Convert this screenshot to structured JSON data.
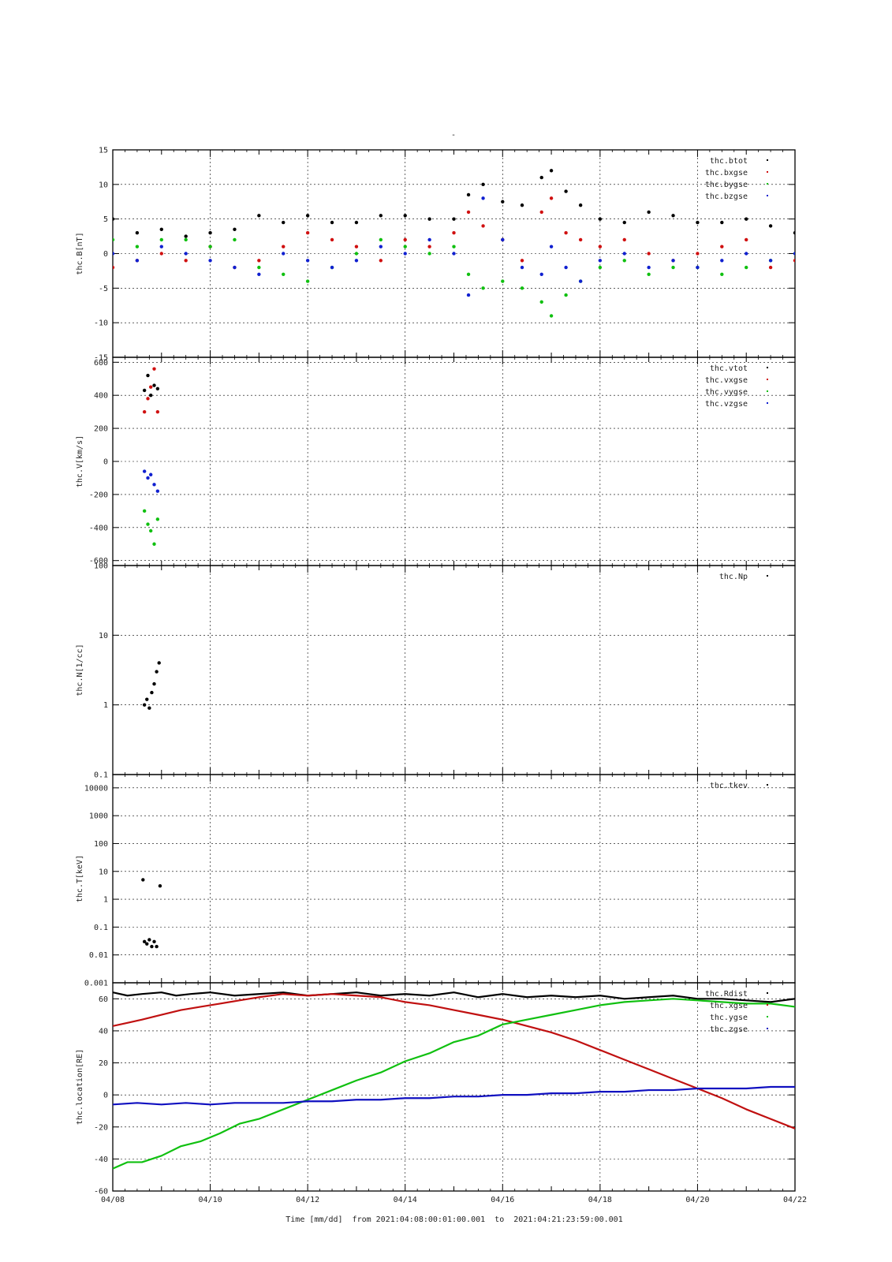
{
  "figure": {
    "title": "-",
    "xlabel": "Time [mm/dd]  from 2021:04:08:00:01:00.001  to  2021:04:21:23:59:00.001",
    "x_ticks": [
      "04/08",
      "04/10",
      "04/12",
      "04/14",
      "04/16",
      "04/18",
      "04/20",
      "04/22"
    ],
    "x_range_days": [
      8,
      22
    ]
  },
  "chart_data": [
    {
      "type": "scatter",
      "ylabel": "thc.B[nT]",
      "ylim": [
        -15,
        15
      ],
      "y_ticks": [
        "15",
        "10",
        "5",
        "0",
        "-5",
        "-10",
        "-15"
      ],
      "legend": "top-right",
      "series": [
        {
          "name": "thc.btot",
          "color": "#000000",
          "x": [
            8.0,
            8.5,
            9.0,
            9.5,
            10.0,
            10.5,
            11.0,
            11.5,
            12.0,
            12.5,
            13.0,
            13.5,
            14.0,
            14.5,
            15.0,
            15.3,
            15.6,
            16.0,
            16.4,
            16.8,
            17.0,
            17.3,
            17.6,
            18.0,
            18.5,
            19.0,
            19.5,
            20.0,
            20.5,
            21.0,
            21.5,
            22.0
          ],
          "values": [
            5,
            3,
            3.5,
            2.5,
            3,
            3.5,
            5.5,
            4.5,
            5.5,
            4.5,
            4.5,
            5.5,
            5.5,
            5,
            5,
            8.5,
            10,
            7.5,
            7,
            11,
            12,
            9,
            7,
            5,
            4.5,
            6,
            5.5,
            4.5,
            4.5,
            5,
            4,
            3
          ]
        },
        {
          "name": "thc.bxgse",
          "color": "#d01010",
          "x": [
            8.0,
            8.5,
            9.0,
            9.5,
            10.0,
            10.5,
            11.0,
            11.5,
            12.0,
            12.5,
            13.0,
            13.5,
            14.0,
            14.5,
            15.0,
            15.3,
            15.6,
            16.0,
            16.4,
            16.8,
            17.0,
            17.3,
            17.6,
            18.0,
            18.5,
            19.0,
            19.5,
            20.0,
            20.5,
            21.0,
            21.5,
            22.0
          ],
          "values": [
            -2,
            -1,
            0,
            -1,
            1,
            -2,
            -1,
            1,
            3,
            2,
            1,
            -1,
            2,
            1,
            3,
            6,
            4,
            2,
            -1,
            6,
            8,
            3,
            2,
            1,
            2,
            0,
            -1,
            0,
            1,
            2,
            -2,
            -1
          ]
        },
        {
          "name": "thc.bygse",
          "color": "#10c010",
          "x": [
            8.0,
            8.5,
            9.0,
            9.5,
            10.0,
            10.5,
            11.0,
            11.5,
            12.0,
            12.5,
            13.0,
            13.5,
            14.0,
            14.5,
            15.0,
            15.3,
            15.6,
            16.0,
            16.4,
            16.8,
            17.0,
            17.3,
            17.6,
            18.0,
            18.5,
            19.0,
            19.5,
            20.0,
            20.5,
            21.0,
            21.5,
            22.0
          ],
          "values": [
            2,
            1,
            2,
            2,
            1,
            2,
            -2,
            -3,
            -4,
            -2,
            0,
            2,
            1,
            0,
            1,
            -3,
            -5,
            -4,
            -5,
            -7,
            -9,
            -6,
            -4,
            -2,
            -1,
            -3,
            -2,
            -2,
            -3,
            -2,
            -1,
            0
          ]
        },
        {
          "name": "thc.bzgse",
          "color": "#1020d0",
          "x": [
            8.0,
            8.5,
            9.0,
            9.5,
            10.0,
            10.5,
            11.0,
            11.5,
            12.0,
            12.5,
            13.0,
            13.5,
            14.0,
            14.5,
            15.0,
            15.3,
            15.6,
            16.0,
            16.4,
            16.8,
            17.0,
            17.3,
            17.6,
            18.0,
            18.5,
            19.0,
            19.5,
            20.0,
            20.5,
            21.0,
            21.5,
            22.0
          ],
          "values": [
            0,
            -1,
            1,
            0,
            -1,
            -2,
            -3,
            0,
            -1,
            -2,
            -1,
            1,
            0,
            2,
            0,
            -6,
            8,
            2,
            -2,
            -3,
            1,
            -2,
            -4,
            -1,
            0,
            -2,
            -1,
            -2,
            -1,
            0,
            -1,
            0
          ]
        }
      ]
    },
    {
      "type": "scatter",
      "ylabel": "thc.V[km/s]",
      "ylim": [
        -630,
        630
      ],
      "y_ticks": [
        "600",
        "400",
        "200",
        "0",
        "-200",
        "-400",
        "-600"
      ],
      "legend": "top-right",
      "series": [
        {
          "name": "thc.vtot",
          "color": "#000000",
          "x": [
            8.65,
            8.72,
            8.78,
            8.85,
            8.92
          ],
          "values": [
            430,
            520,
            400,
            460,
            440
          ]
        },
        {
          "name": "thc.vxgse",
          "color": "#d01010",
          "x": [
            8.65,
            8.72,
            8.78,
            8.85,
            8.92
          ],
          "values": [
            300,
            380,
            450,
            560,
            300
          ]
        },
        {
          "name": "thc.vygse",
          "color": "#10c010",
          "x": [
            8.65,
            8.72,
            8.78,
            8.85,
            8.92
          ],
          "values": [
            -300,
            -380,
            -420,
            -500,
            -350
          ]
        },
        {
          "name": "thc.vzgse",
          "color": "#1020d0",
          "x": [
            8.65,
            8.72,
            8.78,
            8.85,
            8.92
          ],
          "values": [
            -60,
            -100,
            -80,
            -140,
            -180
          ]
        }
      ]
    },
    {
      "type": "scatter",
      "ylabel": "thc.N[1/cc]",
      "yscale": "log",
      "ylim": [
        0.1,
        100
      ],
      "y_ticks": [
        "100",
        "10",
        "1",
        "0.1"
      ],
      "legend": "top-right",
      "series": [
        {
          "name": "thc.Np",
          "color": "#000000",
          "x": [
            8.65,
            8.7,
            8.75,
            8.8,
            8.85,
            8.9,
            8.95
          ],
          "values": [
            1.0,
            1.2,
            0.9,
            1.5,
            2.0,
            3.0,
            4.0
          ]
        }
      ]
    },
    {
      "type": "scatter",
      "ylabel": "thc.T[keV]",
      "yscale": "log",
      "ylim": [
        0.001,
        30000
      ],
      "y_ticks": [
        "10000",
        "1000",
        "100",
        "10",
        "1",
        "0.1",
        "0.01",
        "0.001"
      ],
      "legend": "top-right",
      "series": [
        {
          "name": "thc.tkev",
          "color": "#000000",
          "x": [
            8.65,
            8.7,
            8.75,
            8.8,
            8.85,
            8.9,
            8.62,
            8.97
          ],
          "values": [
            0.03,
            0.025,
            0.035,
            0.02,
            0.03,
            0.02,
            5,
            3
          ]
        }
      ]
    },
    {
      "type": "line",
      "ylabel": "thc.location[RE]",
      "ylim": [
        -60,
        70
      ],
      "y_ticks": [
        "60",
        "40",
        "20",
        "0",
        "-20",
        "-40",
        "-60"
      ],
      "legend": "top-right",
      "series": [
        {
          "name": "thc.Rdist",
          "color": "#000000",
          "x": [
            8.0,
            8.3,
            8.6,
            9.0,
            9.3,
            9.6,
            10.0,
            10.5,
            11.0,
            11.5,
            12.0,
            12.5,
            13.0,
            13.5,
            14.0,
            14.5,
            15.0,
            15.5,
            16.0,
            16.5,
            17.0,
            17.5,
            18.0,
            18.5,
            19.0,
            19.5,
            20.0,
            20.5,
            21.0,
            21.5,
            22.0
          ],
          "values": [
            64,
            62,
            63,
            64,
            62,
            63,
            64,
            62,
            63,
            64,
            62,
            63,
            64,
            62,
            63,
            62,
            64,
            61,
            63,
            61,
            62,
            61,
            62,
            60,
            61,
            62,
            60,
            60,
            59,
            58,
            60
          ]
        },
        {
          "name": "thc.xgse",
          "color": "#c01010",
          "x": [
            8.0,
            8.3,
            8.6,
            9.0,
            9.4,
            9.8,
            10.2,
            10.6,
            11.0,
            11.5,
            12.0,
            12.5,
            13.0,
            13.5,
            14.0,
            14.5,
            15.0,
            15.5,
            16.0,
            16.5,
            17.0,
            17.5,
            18.0,
            18.5,
            19.0,
            19.5,
            20.0,
            20.5,
            21.0,
            21.5,
            22.0
          ],
          "values": [
            43,
            45,
            47,
            50,
            53,
            55,
            57,
            59,
            61,
            63,
            62,
            63,
            62,
            61,
            58,
            56,
            53,
            50,
            47,
            43,
            39,
            34,
            28,
            22,
            16,
            10,
            4,
            -2,
            -9,
            -15,
            -21
          ]
        },
        {
          "name": "thc.ygse",
          "color": "#10c010",
          "x": [
            8.0,
            8.3,
            8.6,
            9.0,
            9.4,
            9.8,
            10.2,
            10.6,
            11.0,
            11.5,
            12.0,
            12.5,
            13.0,
            13.5,
            14.0,
            14.5,
            15.0,
            15.5,
            16.0,
            16.5,
            17.0,
            17.5,
            18.0,
            18.5,
            19.0,
            19.5,
            20.0,
            20.5,
            21.0,
            21.5,
            22.0
          ],
          "values": [
            -46,
            -42,
            -42,
            -38,
            -32,
            -29,
            -24,
            -18,
            -15,
            -9,
            -3,
            3,
            9,
            14,
            21,
            26,
            33,
            37,
            44,
            47,
            50,
            53,
            56,
            58,
            59,
            60,
            59,
            58,
            57,
            57,
            55
          ]
        },
        {
          "name": "thc.zgse",
          "color": "#1010c0",
          "x": [
            8.0,
            8.5,
            9.0,
            9.5,
            10.0,
            10.5,
            11.0,
            11.5,
            12.0,
            12.5,
            13.0,
            13.5,
            14.0,
            14.5,
            15.0,
            15.5,
            16.0,
            16.5,
            17.0,
            17.5,
            18.0,
            18.5,
            19.0,
            19.5,
            20.0,
            20.5,
            21.0,
            21.5,
            22.0
          ],
          "values": [
            -6,
            -5,
            -6,
            -5,
            -6,
            -5,
            -5,
            -5,
            -4,
            -4,
            -3,
            -3,
            -2,
            -2,
            -1,
            -1,
            0,
            0,
            1,
            1,
            2,
            2,
            3,
            3,
            4,
            4,
            4,
            5,
            5
          ]
        }
      ]
    }
  ]
}
